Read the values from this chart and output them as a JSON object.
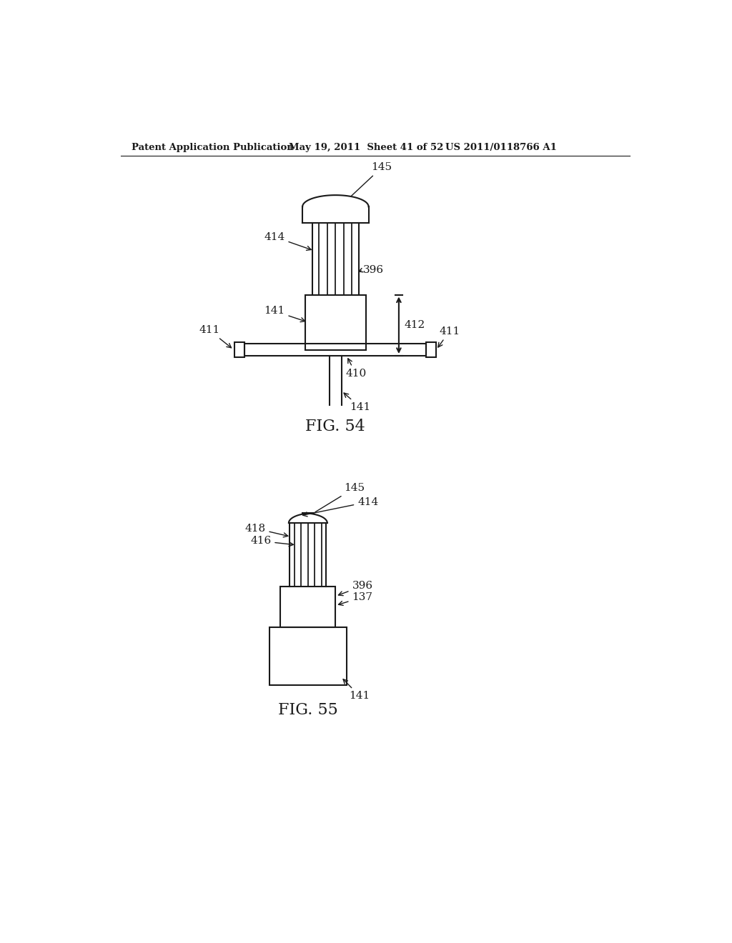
{
  "background_color": "#ffffff",
  "header_text": "Patent Application Publication",
  "header_date": "May 19, 2011  Sheet 41 of 52",
  "header_patent": "US 2011/0118766 A1",
  "fig54_label": "FIG. 54",
  "fig55_label": "FIG. 55",
  "line_color": "#1a1a1a",
  "line_width": 1.5,
  "annotation_fontsize": 11,
  "header_fontsize": 9.5,
  "fig_label_fontsize": 16
}
